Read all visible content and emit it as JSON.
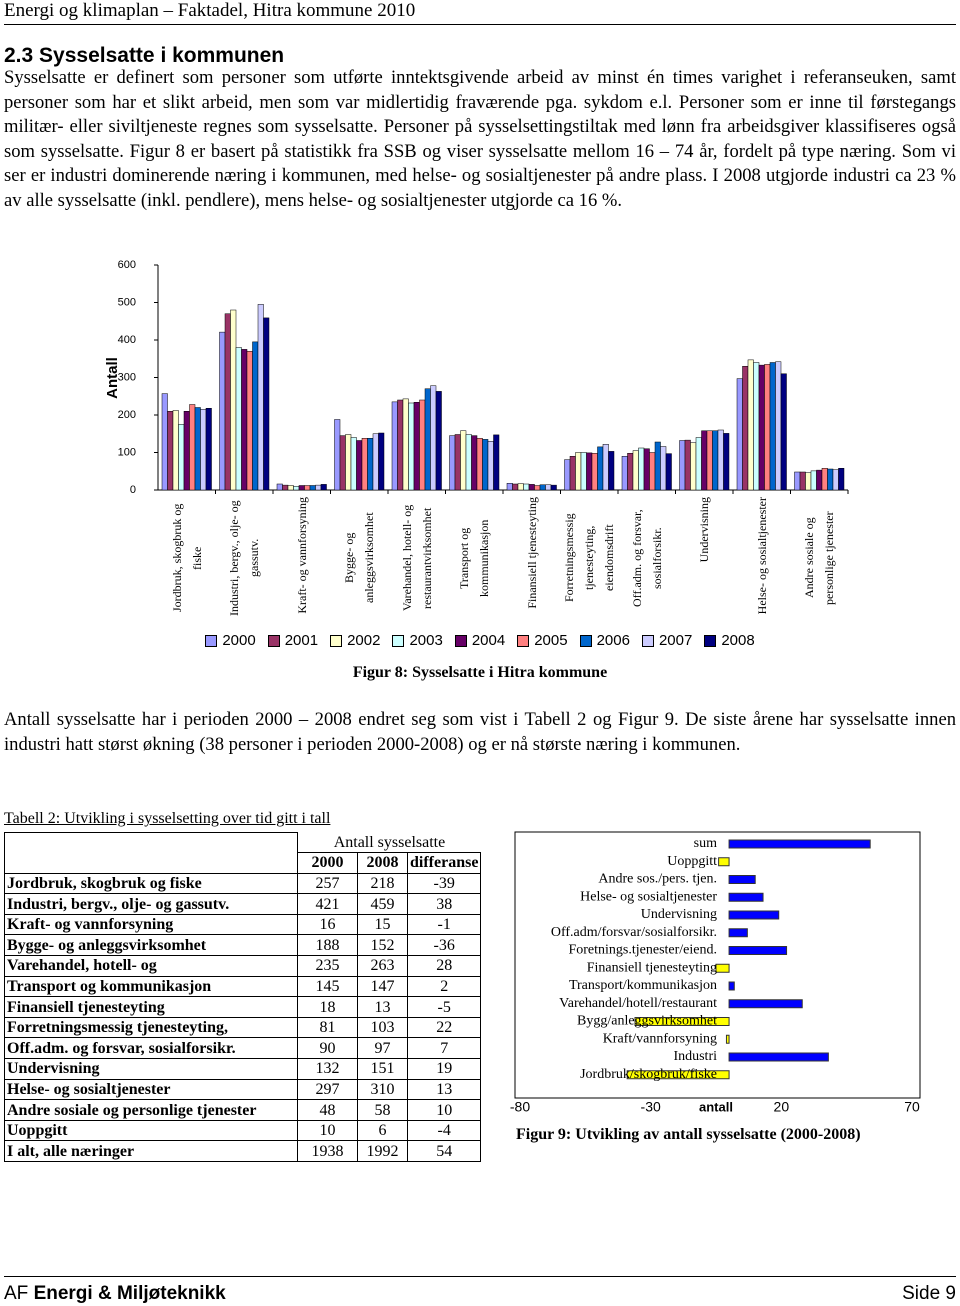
{
  "header": {
    "title": "Energi og klimaplan – Faktadel, Hitra kommune 2010"
  },
  "section": {
    "title": "2.3 Sysselsatte i kommunen",
    "paragraph": "Sysselsatte er definert som personer som utførte inntektsgivende arbeid av minst én times varighet i referanseuken, samt personer som har et slikt arbeid, men som var midlertidig fraværende pga. sykdom e.l. Personer som er inne til førstegangs militær- eller siviltjeneste regnes som sysselsatte. Personer på sysselsettingstiltak med lønn fra arbeidsgiver klassifiseres også som sysselsatte. Figur 8 er basert på statistikk fra SSB og viser sysselsatte mellom 16 – 74 år, fordelt på type næring. Som vi ser er industri dominerende næring i kommunen, med helse- og sosialtjenester på andre plass. I 2008 utgjorde industri ca 23 % av alle sysselsatte (inkl. pendlere), mens helse- og sosialtjenester utgjorde ca 16 %."
  },
  "chart_data": [
    {
      "type": "bar",
      "caption": "Figur 8: Sysselsatte i Hitra kommune",
      "y_label": "Antall",
      "categories": [
        "Jordbruk, skogbruk og fiske",
        "Industri, bergv., olje- og gassutv.",
        "Kraft- og vannforsyning",
        "Bygge- og anleggsvirksomhet",
        "Varehandel, hotell- og restaurantvirksomhet",
        "Transport og kommunikasjon",
        "Finansiell tjenesteyting",
        "Forretningsmessig tjenesteyting, eiendomsdrift",
        "Off.adm. og forsvar, sosialforsikr.",
        "Undervisning",
        "Helse- og sosialtjenester",
        "Andre sosiale og personlige tjenester"
      ],
      "series": [
        {
          "name": "2000",
          "color": "#9999ff",
          "values": [
            257,
            421,
            16,
            188,
            235,
            145,
            18,
            81,
            90,
            132,
            297,
            48
          ]
        },
        {
          "name": "2001",
          "color": "#993366",
          "values": [
            210,
            470,
            13,
            145,
            240,
            148,
            16,
            90,
            98,
            133,
            330,
            48
          ]
        },
        {
          "name": "2002",
          "color": "#ffffcc",
          "values": [
            212,
            480,
            12,
            148,
            243,
            158,
            17,
            100,
            105,
            126,
            347,
            46
          ]
        },
        {
          "name": "2003",
          "color": "#ccffff",
          "values": [
            175,
            380,
            10,
            140,
            232,
            148,
            16,
            100,
            112,
            140,
            340,
            51
          ]
        },
        {
          "name": "2004",
          "color": "#660066",
          "values": [
            210,
            375,
            12,
            132,
            234,
            145,
            15,
            99,
            110,
            158,
            333,
            53
          ]
        },
        {
          "name": "2005",
          "color": "#ff8080",
          "values": [
            228,
            370,
            12,
            138,
            240,
            138,
            12,
            98,
            100,
            158,
            335,
            58
          ]
        },
        {
          "name": "2006",
          "color": "#0066cc",
          "values": [
            220,
            395,
            12,
            138,
            270,
            135,
            14,
            115,
            128,
            158,
            340,
            56
          ]
        },
        {
          "name": "2007",
          "color": "#ccccff",
          "values": [
            215,
            495,
            13,
            150,
            278,
            130,
            14,
            122,
            116,
            160,
            342,
            54
          ]
        },
        {
          "name": "2008",
          "color": "#000080",
          "values": [
            218,
            459,
            15,
            152,
            263,
            147,
            13,
            103,
            97,
            151,
            310,
            58
          ]
        }
      ],
      "ylim": [
        0,
        600
      ],
      "yticks": [
        0,
        100,
        200,
        300,
        400,
        500,
        600
      ],
      "legend": "bottom"
    },
    {
      "type": "hbar",
      "caption": "Figur 9: Utvikling av antall sysselsatte (2000-2008)",
      "x_label": "antall",
      "categories": [
        "sum",
        "Uoppgitt",
        "Andre sos./pers. tjen.",
        "Helse- og sosialtjenester",
        "Undervisning",
        "Off.adm/forsvar/sosialforsikr.",
        "Foretnings.tjenester/eiend.",
        "Finansiell tjenesteyting",
        "Transport/kommunikasjon",
        "Varehandel/hotell/restaurant",
        "Bygg/anleggsvirksomhet",
        "Kraft/vannforsyning",
        "Industri",
        "Jordbruk/skogbruk/fiske"
      ],
      "values": [
        54,
        -4,
        10,
        13,
        19,
        7,
        22,
        -5,
        2,
        28,
        -36,
        -1,
        38,
        -39
      ],
      "color": "#0000ff",
      "negative_color": "#ffff00",
      "xlim": [
        -80,
        70
      ],
      "xticks": [
        -80,
        -30,
        20,
        70
      ]
    }
  ],
  "paragraph": "Antall sysselsatte har i perioden 2000 – 2008 endret seg som vist i Tabell 2 og Figur 9. De siste årene har sysselsatte innen industri hatt størst økning (38 personer i perioden 2000-2008) og er nå største næring i kommunen.",
  "table": {
    "title": "Tabell 2: Utvikling i sysselsetting over tid gitt i tall",
    "group_header": "Antall sysselsatte",
    "columns": [
      "2000",
      "2008",
      "differanse"
    ],
    "rows": [
      [
        "Jordbruk, skogbruk og fiske",
        257,
        218,
        -39
      ],
      [
        "Industri, bergv., olje- og gassutv.",
        421,
        459,
        38
      ],
      [
        "Kraft- og vannforsyning",
        16,
        15,
        -1
      ],
      [
        "Bygge- og anleggsvirksomhet",
        188,
        152,
        -36
      ],
      [
        "Varehandel, hotell- og",
        235,
        263,
        28
      ],
      [
        "Transport og kommunikasjon",
        145,
        147,
        2
      ],
      [
        "Finansiell tjenesteyting",
        18,
        13,
        -5
      ],
      [
        "Forretningsmessig tjenesteyting,",
        81,
        103,
        22
      ],
      [
        "Off.adm. og forsvar, sosialforsikr.",
        90,
        97,
        7
      ],
      [
        "Undervisning",
        132,
        151,
        19
      ],
      [
        "Helse- og sosialtjenester",
        297,
        310,
        13
      ],
      [
        "Andre sosiale og  personlige tjenester",
        48,
        58,
        10
      ],
      [
        "Uoppgitt",
        10,
        6,
        -4
      ],
      [
        "I alt, alle næringer",
        1938,
        1992,
        54
      ]
    ]
  },
  "footer": {
    "company": "AF",
    "department": "Energi & Miljøteknikk",
    "page": "Side 9"
  }
}
